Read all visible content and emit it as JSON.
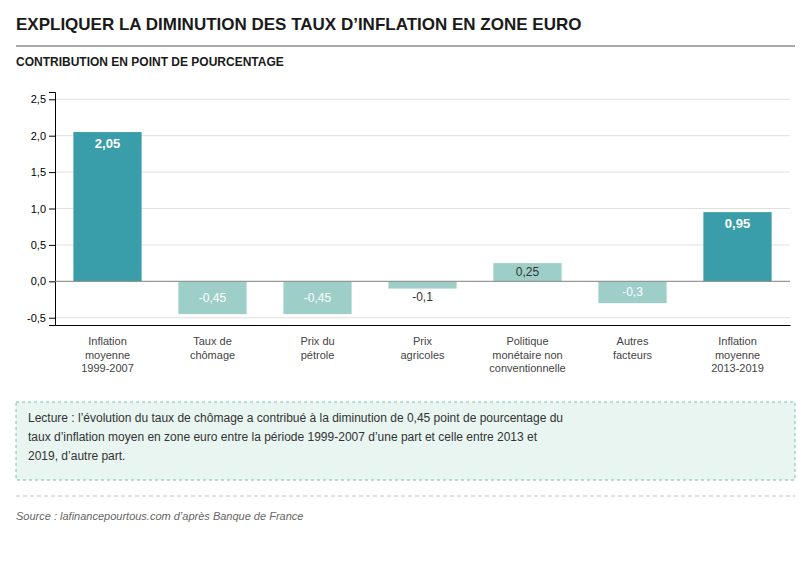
{
  "chart_data": {
    "type": "bar",
    "title": "EXPLIQUER LA DIMINUTION DES TAUX D’INFLATION EN ZONE EURO",
    "subtitle": "CONTRIBUTION EN POINT DE POURCENTAGE",
    "categories": [
      "Inflation\nmoyenne\n1999-2007",
      "Taux de\nchômage",
      "Prix du\npétrole",
      "Prix\nagricoles",
      "Politique\nmonétaire non\nconventionnelle",
      "Autres\nfacteurs",
      "Inflation\nmoyenne\n2013-2019"
    ],
    "values": [
      2.05,
      -0.45,
      -0.45,
      -0.1,
      0.25,
      -0.3,
      0.95
    ],
    "value_labels": [
      "2,05",
      "-0,45",
      "-0,45",
      "-0,1",
      "0,25",
      "-0,3",
      "0,95"
    ],
    "data_labels": true,
    "colors": [
      "#3a9eaa",
      "#9dcfc8",
      "#9dcfc8",
      "#9dcfc8",
      "#9dcfc8",
      "#9dcfc8",
      "#3a9eaa"
    ],
    "ylim": [
      -0.6,
      2.6
    ],
    "yticks": [
      {
        "value": -0.5,
        "label": "-0,5"
      },
      {
        "value": 0.0,
        "label": "0,0"
      },
      {
        "value": 0.5,
        "label": "0,5"
      },
      {
        "value": 1.0,
        "label": "1,0"
      },
      {
        "value": 1.5,
        "label": "1,5"
      },
      {
        "value": 2.0,
        "label": "2,0"
      },
      {
        "value": 2.5,
        "label": "2,5"
      }
    ],
    "grid": true,
    "annotations": [
      "Lecture : l’évolution du taux de chômage a contribué à la diminution de 0,45 point de pourcentage du\ntaux d’inflation moyen en zone euro entre la période 1999-2007 d’une part et celle entre 2013 et\n2019, d’autre part.",
      "Source : lafinancepourtous.com d’après Banque de France"
    ]
  }
}
